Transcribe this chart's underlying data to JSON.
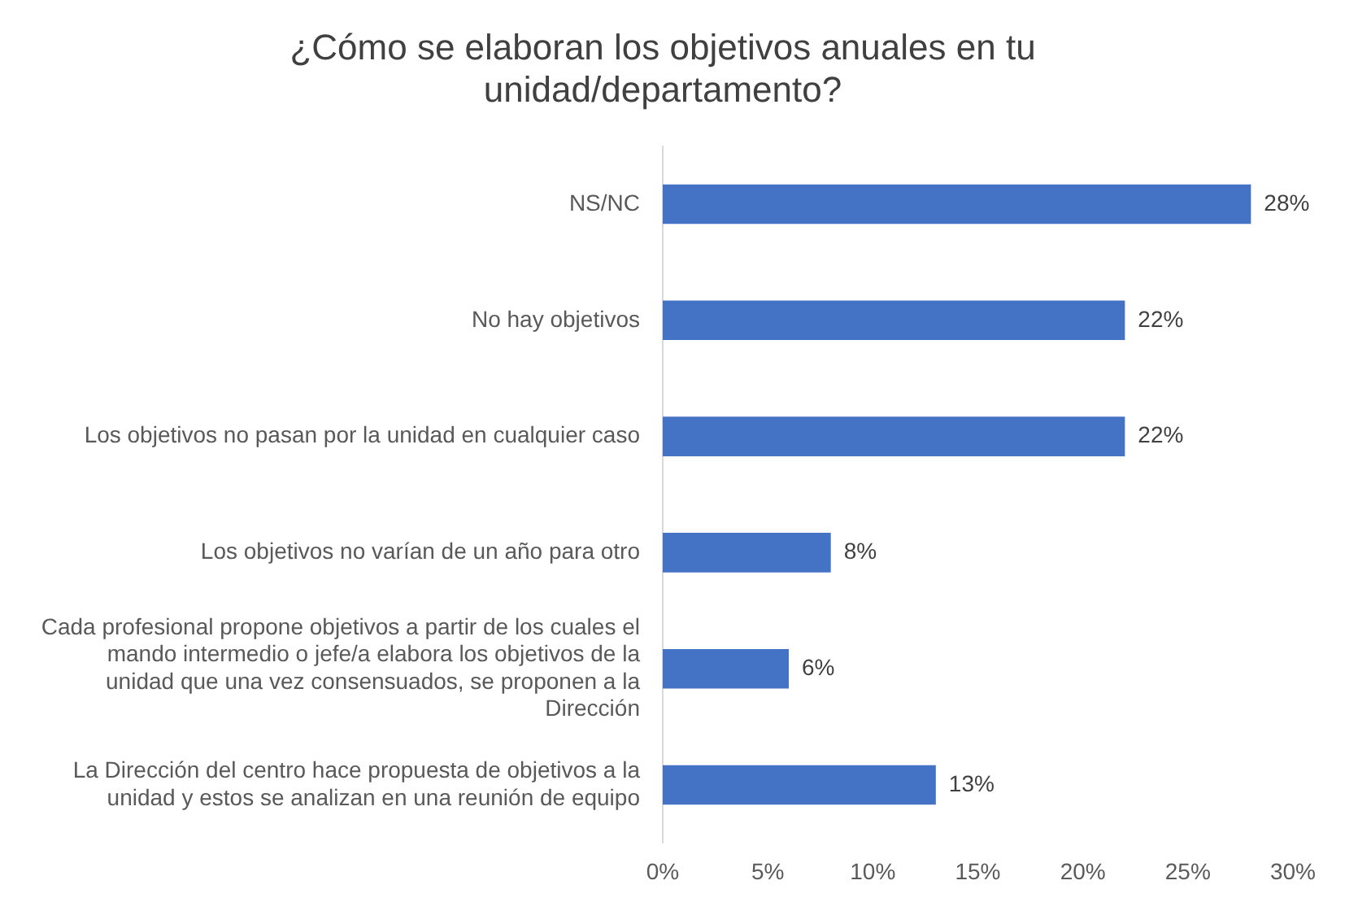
{
  "chart_data": {
    "type": "bar",
    "orientation": "horizontal",
    "title": "¿Cómo se elaboran los objetivos anuales en tu unidad/departamento?",
    "categories": [
      "NS/NC",
      "No hay objetivos",
      "Los objetivos no pasan por la unidad en cualquier caso",
      "Los objetivos no varían de un año para otro",
      "Cada profesional propone objetivos a partir de los cuales el mando intermedio o jefe/a elabora los objetivos de la unidad que una vez consensuados, se proponen a la Dirección",
      "La Dirección del centro hace propuesta de objetivos a la unidad y estos se analizan en una reunión de equipo"
    ],
    "values": [
      28,
      22,
      22,
      8,
      6,
      13
    ],
    "value_labels": [
      "28%",
      "22%",
      "22%",
      "8%",
      "6%",
      "13%"
    ],
    "color": "#4472c4",
    "xlim": [
      0,
      30
    ],
    "xticks": [
      {
        "value": 0,
        "label": "0%"
      },
      {
        "value": 5,
        "label": "5%"
      },
      {
        "value": 10,
        "label": "10%"
      },
      {
        "value": 15,
        "label": "15%"
      },
      {
        "value": 20,
        "label": "20%"
      },
      {
        "value": 25,
        "label": "25%"
      },
      {
        "value": 30,
        "label": "30%"
      }
    ],
    "grid": false,
    "legend": false
  }
}
